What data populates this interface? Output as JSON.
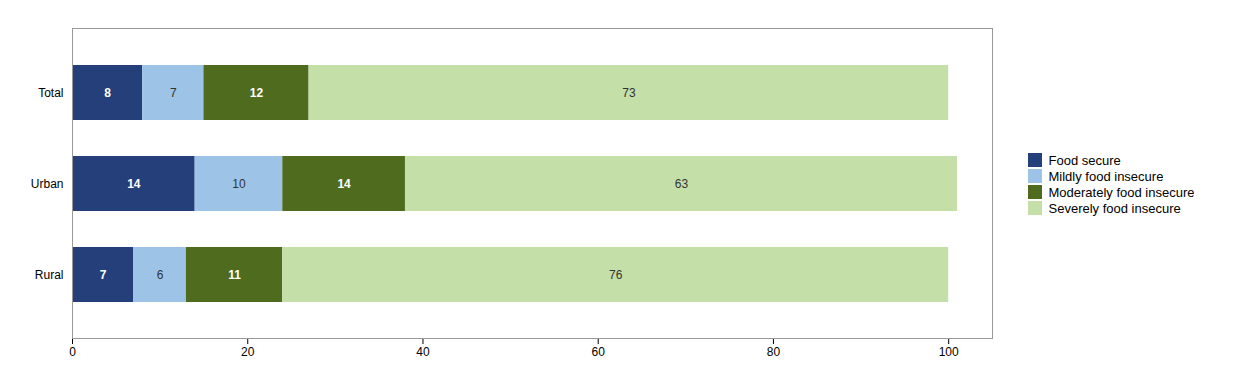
{
  "chart_data": {
    "type": "bar",
    "orientation": "horizontal",
    "stacked": true,
    "data_labels": true,
    "legend": "right",
    "categories": [
      "Total",
      "Urban",
      "Rural"
    ],
    "series": [
      {
        "name": "Food secure",
        "color": "#243f7a",
        "values": [
          8,
          14,
          7
        ]
      },
      {
        "name": "Mildly food insecure",
        "color": "#9dc3e6",
        "values": [
          7,
          10,
          6
        ]
      },
      {
        "name": "Moderately food insecure",
        "color": "#4e6b1e",
        "values": [
          12,
          14,
          11
        ]
      },
      {
        "name": "Severely food insecure",
        "color": "#c5dfa8",
        "values": [
          73,
          63,
          76
        ]
      }
    ],
    "xlim": [
      0,
      105
    ],
    "xticks": [
      0,
      20,
      40,
      60,
      80,
      100
    ]
  }
}
